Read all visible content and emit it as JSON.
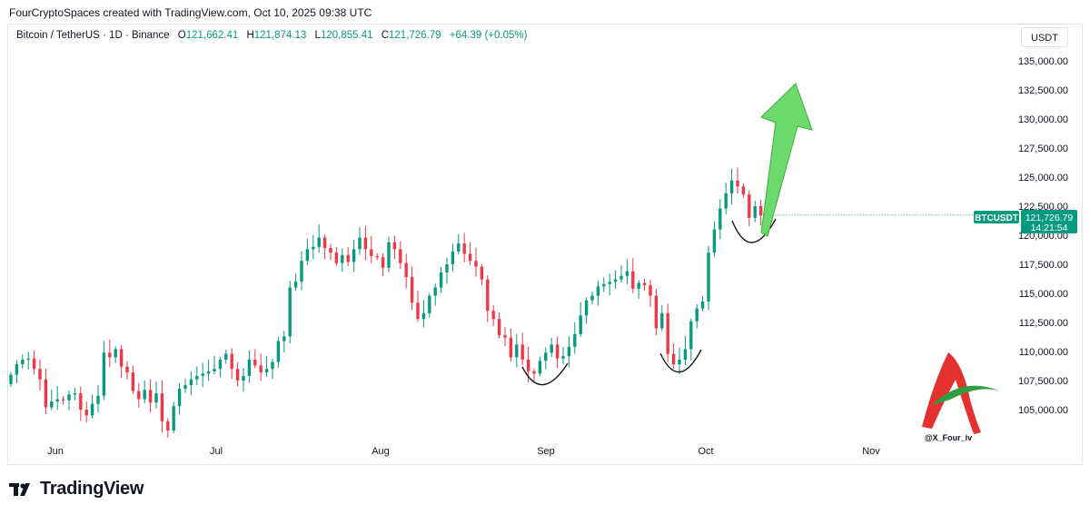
{
  "header": {
    "text": "FourCryptoSpaces created with TradingView.com, Oct 10, 2025 09:38 UTC"
  },
  "legend": {
    "symbol": "Bitcoin / TetherUS · 1D · Binance",
    "o_label": "O",
    "o_value": "121,662.41",
    "h_label": "H",
    "h_value": "121,874.13",
    "l_label": "L",
    "l_value": "120,855.41",
    "c_label": "C",
    "c_value": "121,726.79",
    "change": "+64.39 (+0.05%)"
  },
  "currency": "USDT",
  "price_tag": {
    "symbol": "BTCUSDT",
    "price": "121,726.79",
    "countdown": "14:21:54"
  },
  "watermark": {
    "handle": "@X_Four_iv"
  },
  "footer": {
    "brand": "TradingView"
  },
  "colors": {
    "up": "#089981",
    "down": "#f23645",
    "arrow": "#5cd65c",
    "tag": "#089981"
  },
  "chart_data": {
    "type": "candlestick",
    "x_tick_labels": [
      "Jun",
      "Jul",
      "Aug",
      "Sep",
      "Oct",
      "Nov"
    ],
    "y_ticks": [
      "105,000.00",
      "107,500.00",
      "110,000.00",
      "112,500.00",
      "115,000.00",
      "117,500.00",
      "120,000.00",
      "122,500.00",
      "125,000.00",
      "127,500.00",
      "130,000.00",
      "132,500.00",
      "135,000.00"
    ],
    "y_tick_values": [
      105000,
      107500,
      110000,
      112500,
      115000,
      117500,
      120000,
      122500,
      125000,
      127500,
      130000,
      132500,
      135000
    ],
    "last_price": 121726.79,
    "closes": [
      108000,
      108900,
      109300,
      109400,
      108500,
      107600,
      105200,
      105700,
      105900,
      105800,
      106300,
      106400,
      105000,
      104500,
      105500,
      106200,
      109900,
      109500,
      110200,
      108700,
      108200,
      106600,
      105900,
      106700,
      105600,
      106400,
      104000,
      103200,
      105300,
      106800,
      107100,
      107600,
      107900,
      108100,
      108300,
      108500,
      109300,
      109800,
      108500,
      107500,
      107900,
      109300,
      108800,
      108200,
      108500,
      109100,
      110900,
      111300,
      115500,
      116000,
      117800,
      118800,
      119000,
      119800,
      118900,
      118500,
      117600,
      118300,
      117700,
      118800,
      119800,
      118800,
      118200,
      118100,
      117200,
      119400,
      118800,
      117600,
      116400,
      114200,
      112800,
      113300,
      114800,
      115500,
      116800,
      117500,
      118600,
      119300,
      118400,
      117800,
      117300,
      116200,
      113500,
      112800,
      111400,
      111200,
      109500,
      110600,
      109300,
      108300,
      108100,
      109200,
      109900,
      110600,
      109400,
      109600,
      110400,
      111500,
      113100,
      114400,
      114800,
      115600,
      115800,
      116000,
      116200,
      116500,
      116900,
      115400,
      115900,
      115700,
      114800,
      112000,
      113300,
      109800,
      108900,
      109300,
      110200,
      112600,
      113700,
      114300,
      118500,
      120500,
      122300,
      123600,
      124700,
      124200,
      123500,
      121500,
      122500,
      121700
    ]
  }
}
